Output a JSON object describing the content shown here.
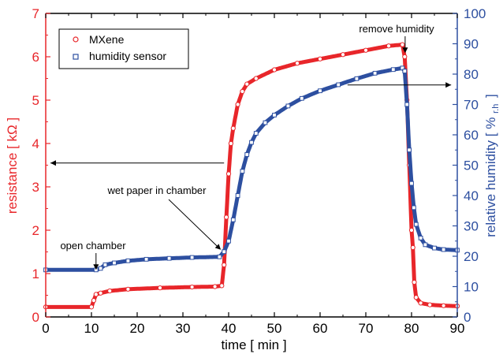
{
  "chart_data": {
    "type": "scatter",
    "xlabel": "time [ min ]",
    "ylabel_left": "resistance [ kΩ ]",
    "ylabel_right_main": "relative humidity [ %",
    "ylabel_right_sub": "r.h",
    "ylabel_right_end": "]",
    "xlim": [
      0,
      90
    ],
    "ylim_left": [
      0,
      7
    ],
    "ylim_right": [
      0,
      100
    ],
    "x_ticks": [
      0,
      10,
      20,
      30,
      40,
      50,
      60,
      70,
      80,
      90
    ],
    "y_left_ticks": [
      0,
      1,
      2,
      3,
      4,
      5,
      6,
      7
    ],
    "y_right_ticks": [
      0,
      10,
      20,
      30,
      40,
      50,
      60,
      70,
      80,
      90,
      100
    ],
    "legend": {
      "placement": "top-left",
      "entries": [
        "MXene",
        "humidity sensor"
      ]
    },
    "series": [
      {
        "name": "MXene",
        "axis": "left",
        "color": "#e8262a",
        "marker": "circle",
        "points": [
          [
            0,
            0.23
          ],
          [
            10,
            0.23
          ],
          [
            10.5,
            0.38
          ],
          [
            11,
            0.52
          ],
          [
            12,
            0.55
          ],
          [
            14,
            0.6
          ],
          [
            18,
            0.64
          ],
          [
            25,
            0.67
          ],
          [
            32,
            0.69
          ],
          [
            37,
            0.7
          ],
          [
            38.5,
            0.72
          ],
          [
            39,
            1.2
          ],
          [
            39.5,
            2.3
          ],
          [
            40,
            3.3
          ],
          [
            40.5,
            4.0
          ],
          [
            41,
            4.35
          ],
          [
            42,
            4.9
          ],
          [
            43,
            5.2
          ],
          [
            44,
            5.37
          ],
          [
            46,
            5.5
          ],
          [
            50,
            5.7
          ],
          [
            55,
            5.85
          ],
          [
            60,
            5.95
          ],
          [
            65,
            6.05
          ],
          [
            70,
            6.15
          ],
          [
            75,
            6.25
          ],
          [
            78,
            6.28
          ],
          [
            78.5,
            6.0
          ],
          [
            79,
            5.0
          ],
          [
            79.5,
            3.5
          ],
          [
            80,
            2.0
          ],
          [
            80.3,
            1.6
          ],
          [
            80.6,
            0.8
          ],
          [
            81,
            0.45
          ],
          [
            82,
            0.32
          ],
          [
            84,
            0.28
          ],
          [
            87,
            0.26
          ],
          [
            90,
            0.25
          ]
        ]
      },
      {
        "name": "humidity sensor",
        "axis": "right",
        "color": "#2d4fa0",
        "marker": "square",
        "points": [
          [
            0,
            15.5
          ],
          [
            11,
            15.5
          ],
          [
            12,
            16.0
          ],
          [
            13,
            17.2
          ],
          [
            15,
            17.8
          ],
          [
            18,
            18.5
          ],
          [
            22,
            19.0
          ],
          [
            27,
            19.3
          ],
          [
            32,
            19.6
          ],
          [
            38,
            19.8
          ],
          [
            39,
            21.5
          ],
          [
            40,
            25
          ],
          [
            41,
            32
          ],
          [
            42,
            40
          ],
          [
            43,
            48
          ],
          [
            44,
            53.5
          ],
          [
            45,
            57.5
          ],
          [
            46,
            60.5
          ],
          [
            48,
            64
          ],
          [
            50,
            66.5
          ],
          [
            53,
            69.5
          ],
          [
            56,
            72
          ],
          [
            60,
            74.5
          ],
          [
            64,
            76.5
          ],
          [
            68,
            78.5
          ],
          [
            72,
            80.3
          ],
          [
            76,
            81.5
          ],
          [
            78,
            82
          ],
          [
            78.5,
            81
          ],
          [
            79,
            70
          ],
          [
            79.5,
            55
          ],
          [
            80,
            44
          ],
          [
            80.5,
            36
          ],
          [
            81,
            30.5
          ],
          [
            82,
            26
          ],
          [
            83,
            23.8
          ],
          [
            85,
            22.7
          ],
          [
            87,
            22.2
          ],
          [
            90,
            22
          ]
        ]
      }
    ],
    "annotations": [
      {
        "text": "open chamber",
        "x": 11,
        "y_left": 1.05,
        "label_side": "above",
        "arrow": "down"
      },
      {
        "text": "wet paper in chamber",
        "x": 38.3,
        "y_left": 1.55,
        "label_side": "upper-left",
        "arrow": "diagonal"
      },
      {
        "text": "remove humidity",
        "x": 78.6,
        "y_left": 6.05,
        "label_side": "above",
        "arrow": "down"
      }
    ],
    "axis_arrows": [
      {
        "from_x": 39,
        "to_x": 0,
        "y_left": 3.55,
        "direction": "left",
        "meaning": "left axis"
      },
      {
        "from_x": 66,
        "to_x": 89,
        "y_left": 5.35,
        "direction": "right",
        "meaning": "right axis"
      }
    ],
    "grid": false
  }
}
